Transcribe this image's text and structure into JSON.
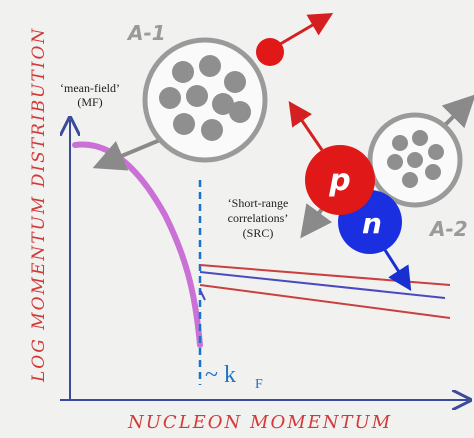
{
  "labels": {
    "a_minus_1": "A-1",
    "a_minus_2": "A-2",
    "proton": "p",
    "neutron": "n",
    "mean_field": [
      "‘mean-field’",
      "(MF)"
    ],
    "src": [
      "‘Short-range",
      "correlations’",
      "(SRC)"
    ],
    "fermi": "~ k",
    "fermi_sub": "F",
    "y_axis": "LOG MOMENTUM DISTRIBUTION",
    "x_axis": "NUCLEON MOMENTUM"
  }
}
